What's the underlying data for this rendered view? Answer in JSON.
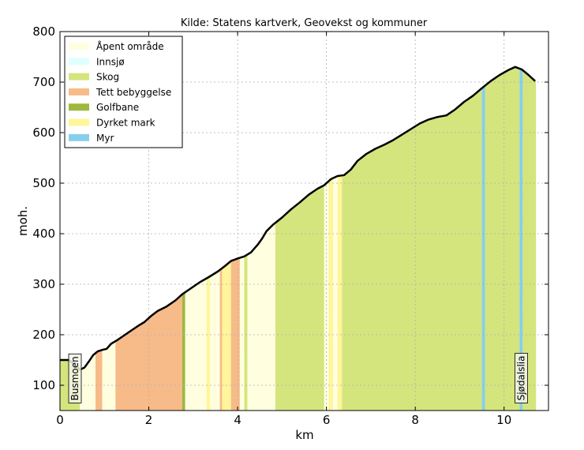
{
  "chart_data": {
    "type": "area",
    "title": "Kilde: Statens kartverk, Geovekst og kommuner",
    "xlabel": "km",
    "ylabel": "moh.",
    "xlim": [
      0,
      11
    ],
    "ylim": [
      50,
      800
    ],
    "xticks": [
      0,
      2,
      4,
      6,
      8,
      10
    ],
    "yticks": [
      100,
      200,
      300,
      400,
      500,
      600,
      700,
      800
    ],
    "grid": true,
    "legend_position": "top-left",
    "legend": [
      {
        "key": "apent",
        "label": "Åpent område",
        "color": "#ffffe0"
      },
      {
        "key": "innsjo",
        "label": "Innsjø",
        "color": "#e0ffff"
      },
      {
        "key": "skog",
        "label": "Skog",
        "color": "#d4e57d"
      },
      {
        "key": "bebyggelse",
        "label": "Tett bebyggelse",
        "color": "#f7bb89"
      },
      {
        "key": "golf",
        "label": "Golfbane",
        "color": "#9fb83e"
      },
      {
        "key": "dyrket",
        "label": "Dyrket mark",
        "color": "#fff59a"
      },
      {
        "key": "myr",
        "label": "Myr",
        "color": "#87ceeb"
      }
    ],
    "profile": [
      [
        0.0,
        150
      ],
      [
        0.2,
        150
      ],
      [
        0.35,
        140
      ],
      [
        0.45,
        131
      ],
      [
        0.55,
        135
      ],
      [
        0.65,
        147
      ],
      [
        0.75,
        160
      ],
      [
        0.85,
        167
      ],
      [
        0.95,
        170
      ],
      [
        1.05,
        172
      ],
      [
        1.15,
        182
      ],
      [
        1.3,
        190
      ],
      [
        1.45,
        199
      ],
      [
        1.6,
        208
      ],
      [
        1.75,
        217
      ],
      [
        1.9,
        225
      ],
      [
        2.05,
        237
      ],
      [
        2.2,
        247
      ],
      [
        2.4,
        256
      ],
      [
        2.6,
        268
      ],
      [
        2.75,
        280
      ],
      [
        2.95,
        292
      ],
      [
        3.15,
        304
      ],
      [
        3.35,
        314
      ],
      [
        3.55,
        325
      ],
      [
        3.7,
        335
      ],
      [
        3.85,
        346
      ],
      [
        4.0,
        351
      ],
      [
        4.15,
        355
      ],
      [
        4.3,
        363
      ],
      [
        4.45,
        378
      ],
      [
        4.55,
        390
      ],
      [
        4.65,
        405
      ],
      [
        4.8,
        418
      ],
      [
        5.0,
        432
      ],
      [
        5.2,
        448
      ],
      [
        5.4,
        462
      ],
      [
        5.6,
        477
      ],
      [
        5.8,
        489
      ],
      [
        5.95,
        496
      ],
      [
        6.1,
        508
      ],
      [
        6.25,
        514
      ],
      [
        6.4,
        516
      ],
      [
        6.55,
        527
      ],
      [
        6.7,
        544
      ],
      [
        6.9,
        558
      ],
      [
        7.1,
        568
      ],
      [
        7.3,
        576
      ],
      [
        7.5,
        585
      ],
      [
        7.7,
        596
      ],
      [
        7.9,
        607
      ],
      [
        8.1,
        618
      ],
      [
        8.3,
        626
      ],
      [
        8.5,
        631
      ],
      [
        8.7,
        634
      ],
      [
        8.9,
        646
      ],
      [
        9.1,
        661
      ],
      [
        9.3,
        673
      ],
      [
        9.5,
        688
      ],
      [
        9.7,
        702
      ],
      [
        9.9,
        714
      ],
      [
        10.1,
        724
      ],
      [
        10.25,
        730
      ],
      [
        10.4,
        725
      ],
      [
        10.55,
        714
      ],
      [
        10.7,
        702
      ]
    ],
    "segments": [
      {
        "from": 0.0,
        "to": 0.45,
        "type": "skog"
      },
      {
        "from": 0.45,
        "to": 0.8,
        "type": "apent"
      },
      {
        "from": 0.8,
        "to": 0.95,
        "type": "bebyggelse"
      },
      {
        "from": 0.95,
        "to": 1.25,
        "type": "apent"
      },
      {
        "from": 1.25,
        "to": 2.75,
        "type": "bebyggelse"
      },
      {
        "from": 2.75,
        "to": 2.82,
        "type": "golf"
      },
      {
        "from": 2.82,
        "to": 3.3,
        "type": "apent"
      },
      {
        "from": 3.3,
        "to": 3.38,
        "type": "dyrket"
      },
      {
        "from": 3.38,
        "to": 3.6,
        "type": "apent"
      },
      {
        "from": 3.6,
        "to": 3.65,
        "type": "bebyggelse"
      },
      {
        "from": 3.65,
        "to": 3.85,
        "type": "dyrket"
      },
      {
        "from": 3.85,
        "to": 4.05,
        "type": "bebyggelse"
      },
      {
        "from": 4.05,
        "to": 4.15,
        "type": "apent"
      },
      {
        "from": 4.15,
        "to": 4.22,
        "type": "skog"
      },
      {
        "from": 4.22,
        "to": 4.32,
        "type": "apent"
      },
      {
        "from": 4.32,
        "to": 4.85,
        "type": "apent"
      },
      {
        "from": 4.85,
        "to": 5.95,
        "type": "skog"
      },
      {
        "from": 5.95,
        "to": 6.05,
        "type": "apent"
      },
      {
        "from": 6.05,
        "to": 6.15,
        "type": "dyrket"
      },
      {
        "from": 6.15,
        "to": 6.25,
        "type": "apent"
      },
      {
        "from": 6.25,
        "to": 6.35,
        "type": "dyrket"
      },
      {
        "from": 6.35,
        "to": 9.5,
        "type": "skog"
      },
      {
        "from": 9.5,
        "to": 9.57,
        "type": "myr"
      },
      {
        "from": 9.57,
        "to": 10.35,
        "type": "skog"
      },
      {
        "from": 10.35,
        "to": 10.42,
        "type": "myr"
      },
      {
        "from": 10.42,
        "to": 10.72,
        "type": "skog"
      }
    ],
    "places": [
      {
        "label": "Busmoen",
        "x": 0.32,
        "y": 65
      },
      {
        "label": "Sjødalslia",
        "x": 10.37,
        "y": 65
      }
    ]
  }
}
